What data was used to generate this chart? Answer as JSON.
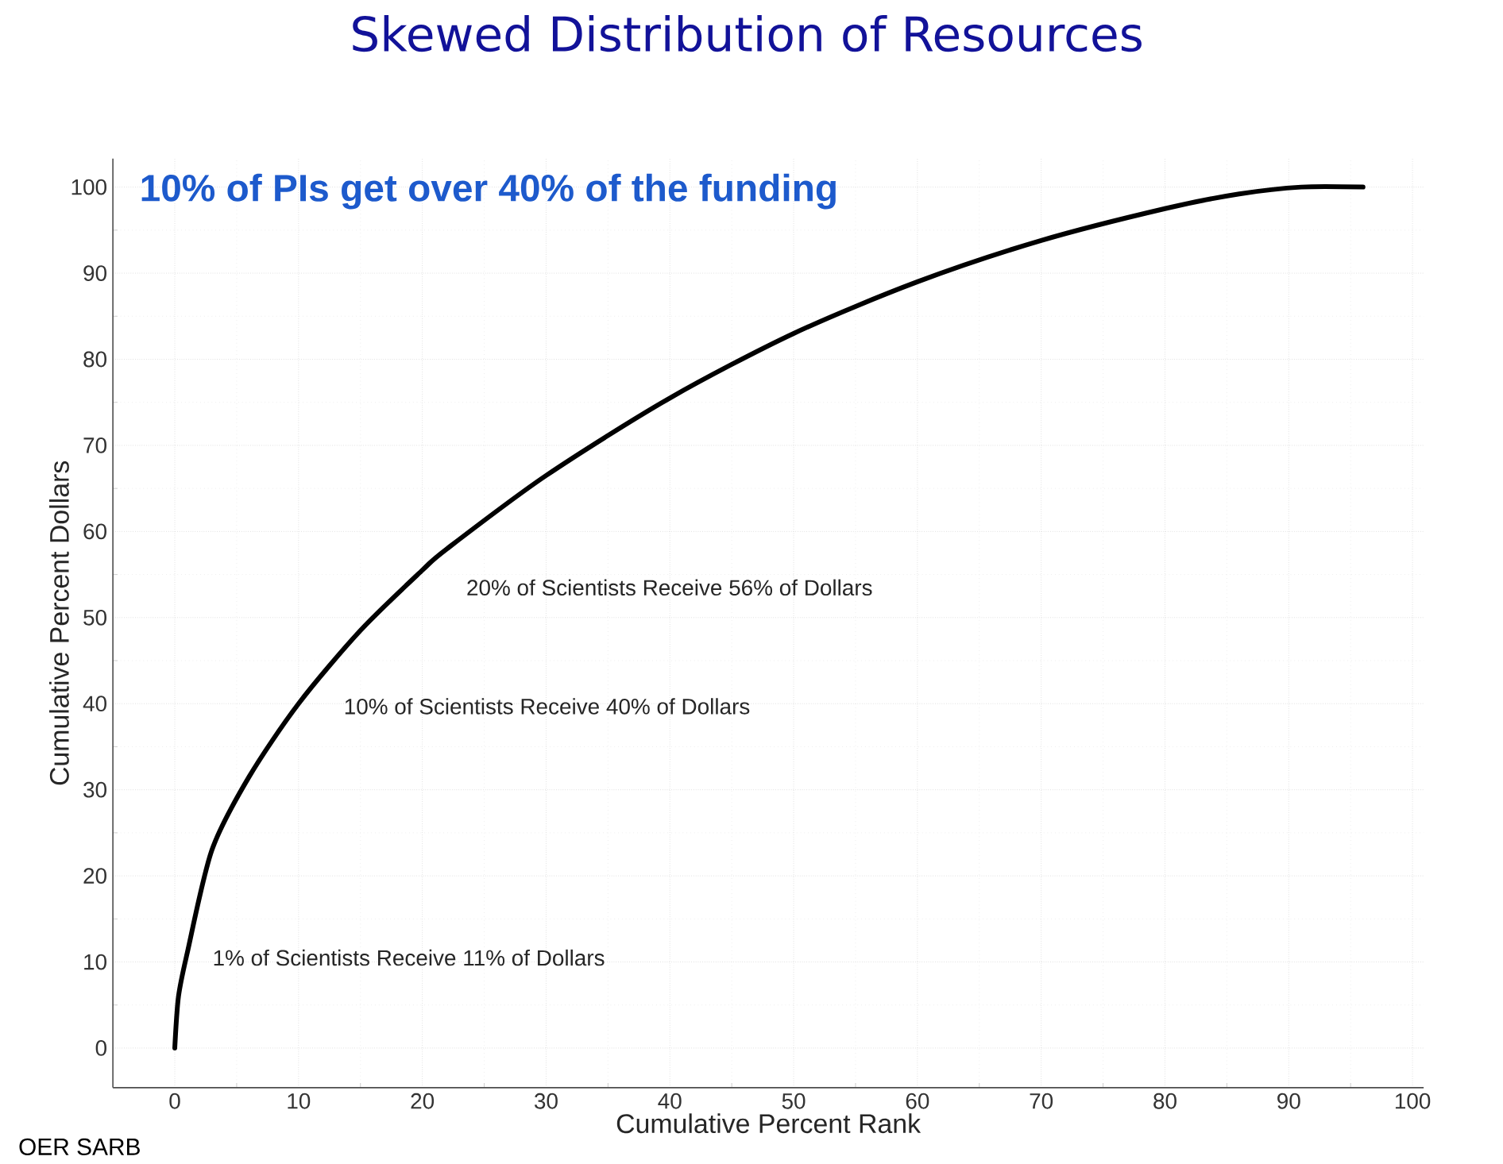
{
  "chart_data": {
    "type": "line",
    "title": "Skewed Distribution of Resources",
    "subtitle": "10% of PIs get over 40% of the funding",
    "xlabel": "Cumulative Percent Rank",
    "ylabel": "Cumulative Percent Dollars",
    "x": [
      0,
      0.3,
      1,
      3,
      6,
      10,
      15,
      20,
      22,
      30,
      40,
      50,
      60,
      70,
      80,
      86,
      91,
      96
    ],
    "series": [
      {
        "color": "#000000",
        "values": [
          0,
          6,
          11,
          23,
          31.5,
          40,
          48.5,
          55.5,
          58,
          66.5,
          75.5,
          83,
          89,
          93.8,
          97.5,
          99.2,
          100,
          100
        ]
      }
    ],
    "xlim": [
      -5,
      100.9
    ],
    "ylim": [
      -4.6,
      103.3
    ],
    "xticks": [
      0,
      10,
      20,
      30,
      40,
      50,
      60,
      70,
      80,
      90,
      100
    ],
    "yticks": [
      0,
      10,
      20,
      30,
      40,
      50,
      60,
      70,
      80,
      90,
      100
    ],
    "grid": true,
    "marker": "none",
    "line_style": "solid",
    "annotations": [
      "20% of Scientists Receive 56% of Dollars",
      "10% of Scientists Receive 40% of Dollars",
      "1% of Scientists Receive 11% of Dollars",
      "OER SARB"
    ]
  }
}
